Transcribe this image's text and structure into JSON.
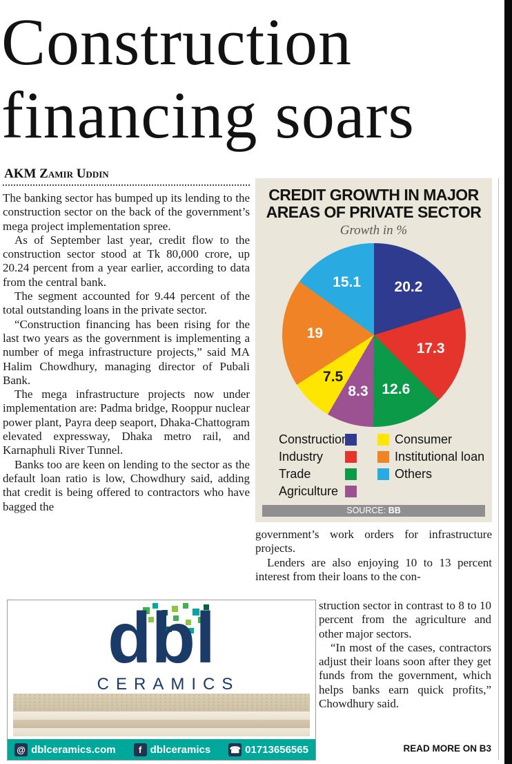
{
  "masthead": {
    "headline_line1": "Construction",
    "headline_line2": "financing soars",
    "byline": "AKM Zamir Uddin"
  },
  "article": {
    "left_paragraphs": [
      "The banking sector has bumped up its lending to the construction sector on the back of the government’s mega project implementation spree.",
      "As of September last year, credit flow to the construction sector stood at Tk 80,000 crore, up 20.24 percent from a year earlier, according to data from the central bank.",
      "The segment accounted for 9.44 percent of the total outstanding loans in the private sector.",
      "“Construction financing has been rising for the last two years as the government is implementing a number of mega infrastructure projects,” said MA Halim Chowdhury, managing director of Pubali Bank.",
      "The mega infrastructure projects now under implementation are: Padma bridge, Rooppur nuclear power plant, Payra deep seaport, Dhaka-Chattogram elevated expressway, Dhaka metro rail, and Karnaphuli River Tunnel.",
      "Banks too are keen on lending to the sector as the default loan ratio is low, Chowdhury said, adding that credit is being offered to contractors who have bagged the"
    ],
    "right_paragraphs": [
      "government’s work orders for infrastructure projects.",
      "Lenders are also enjoying 10 to 13 percent interest from their loans to the con-"
    ],
    "narrow_paragraphs": [
      "struction sector in contrast to 8 to 10 percent from the agriculture and other major sectors.",
      "“In most of the cases, contractors adjust their loans soon after they get funds from the government, which helps banks earn quick profits,” Chowdhury said."
    ],
    "read_more": "READ MORE ON B3"
  },
  "chart_data": {
    "type": "pie",
    "title_line1": "CREDIT GROWTH IN MAJOR",
    "title_line2": "AREAS OF PRIVATE SECTOR",
    "subtitle": "Growth in %",
    "unit": "percent",
    "start_angle_deg": 0,
    "direction": "clockwise",
    "slices": [
      {
        "name": "Construction",
        "value": 20.2,
        "color": "#2e3b8e",
        "label_color": "#ffffff"
      },
      {
        "name": "Industry",
        "value": 17.3,
        "color": "#e5342b",
        "label_color": "#ffffff"
      },
      {
        "name": "Trade",
        "value": 12.6,
        "color": "#0a9a48",
        "label_color": "#ffffff"
      },
      {
        "name": "Agriculture",
        "value": 8.3,
        "color": "#9c5192",
        "label_color": "#ffffff"
      },
      {
        "name": "Consumer",
        "value": 7.5,
        "color": "#ffe600",
        "label_color": "#1a1a1a"
      },
      {
        "name": "Institutional loan",
        "value": 19,
        "color": "#ef8326",
        "label_color": "#ffffff"
      },
      {
        "name": "Others",
        "value": 15.1,
        "color": "#29abe2",
        "label_color": "#ffffff"
      }
    ],
    "legend_rows": [
      {
        "left": "Construction",
        "left_color": "#2e3b8e",
        "right": "Consumer",
        "right_color": "#ffe600"
      },
      {
        "left": "Industry",
        "left_color": "#e5342b",
        "right": "Institutional loan",
        "right_color": "#ef8326"
      },
      {
        "left": "Trade",
        "left_color": "#0a9a48",
        "right": "Others",
        "right_color": "#29abe2"
      },
      {
        "left": "Agriculture",
        "left_color": "#9c5192",
        "right": null,
        "right_color": null
      }
    ],
    "source_label": "SOURCE:",
    "source_value": "BB"
  },
  "ad": {
    "brand": "dbl",
    "brand_sub": "CERAMICS",
    "accent_color": "#00a79b",
    "brand_color": "#1a3a68",
    "contacts": [
      {
        "icon": "website-icon",
        "glyph": "@",
        "text": "dblceramics.com"
      },
      {
        "icon": "facebook-icon",
        "glyph": "f",
        "text": "dblceramics"
      },
      {
        "icon": "phone-icon",
        "glyph": "☎",
        "text": "01713656565"
      }
    ]
  }
}
